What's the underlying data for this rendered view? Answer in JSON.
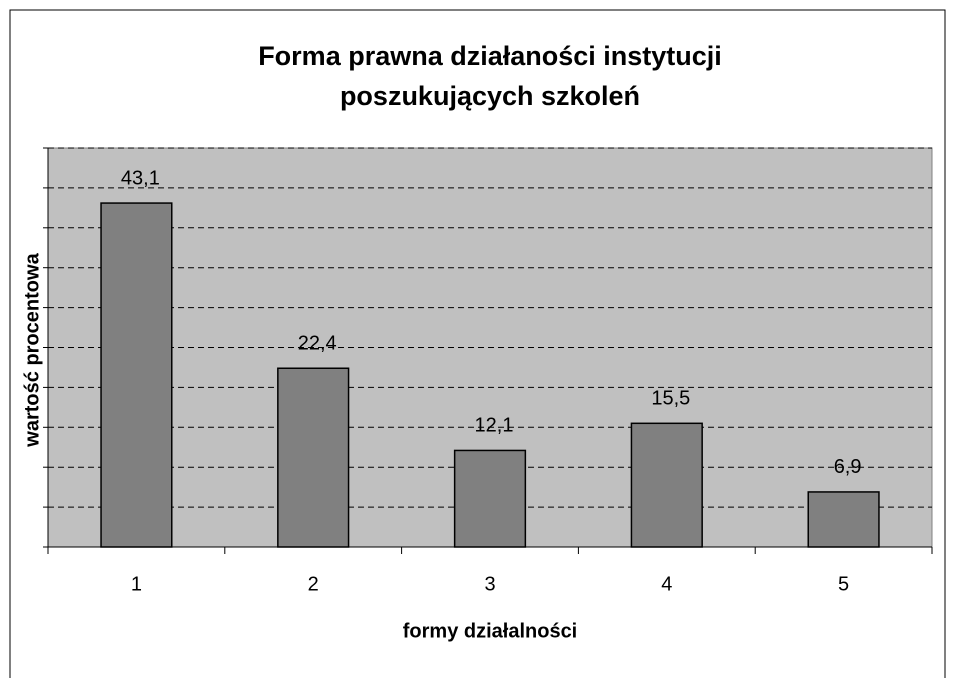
{
  "chart_data": {
    "type": "bar",
    "title": [
      "Forma prawna działaności instytucji",
      "poszukujących szkoleń"
    ],
    "x_label": "formy działalności",
    "y_label": "wartość procentowa",
    "categories": [
      "1",
      "2",
      "3",
      "4",
      "5"
    ],
    "values": [
      43.1,
      22.4,
      12.1,
      15.5,
      6.9
    ],
    "value_labels": [
      "43,1",
      "22,4",
      "12,1",
      "15,5",
      "6,9"
    ],
    "color": "#808080",
    "plot_background": "#c0c0c0",
    "ylim": [
      0,
      50
    ],
    "yticks": [
      0,
      5,
      10,
      15,
      20,
      25,
      30,
      35,
      40,
      45,
      50
    ],
    "grid": true
  }
}
